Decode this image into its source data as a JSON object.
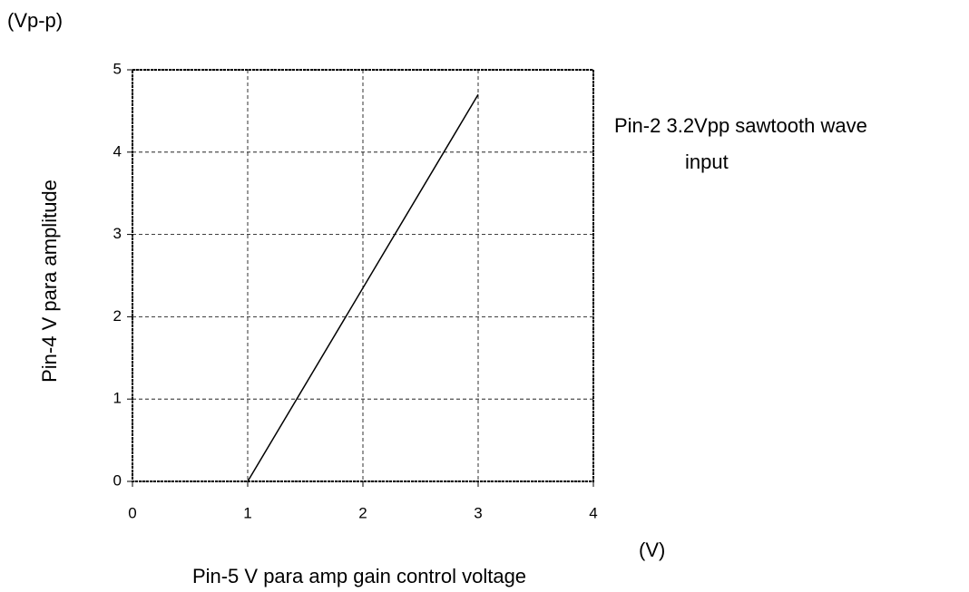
{
  "chart_data": {
    "type": "line",
    "y_unit": "(Vp-p)",
    "y_label": "Pin-4 V para amplitude",
    "x_label": "Pin-5 V para amp gain control voltage",
    "x_unit": "(V)",
    "annotation": [
      "Pin-2 3.2Vpp sawtooth wave",
      "input"
    ],
    "x": [
      1,
      3
    ],
    "series": [
      {
        "color": "#000000",
        "values": [
          0,
          4.7
        ]
      }
    ],
    "xlim": [
      0,
      4
    ],
    "xticks": [
      0,
      1,
      2,
      3,
      4
    ],
    "ylim": [
      0,
      5
    ],
    "yticks": [
      0,
      1,
      2,
      3,
      4,
      5
    ],
    "grid": true
  }
}
